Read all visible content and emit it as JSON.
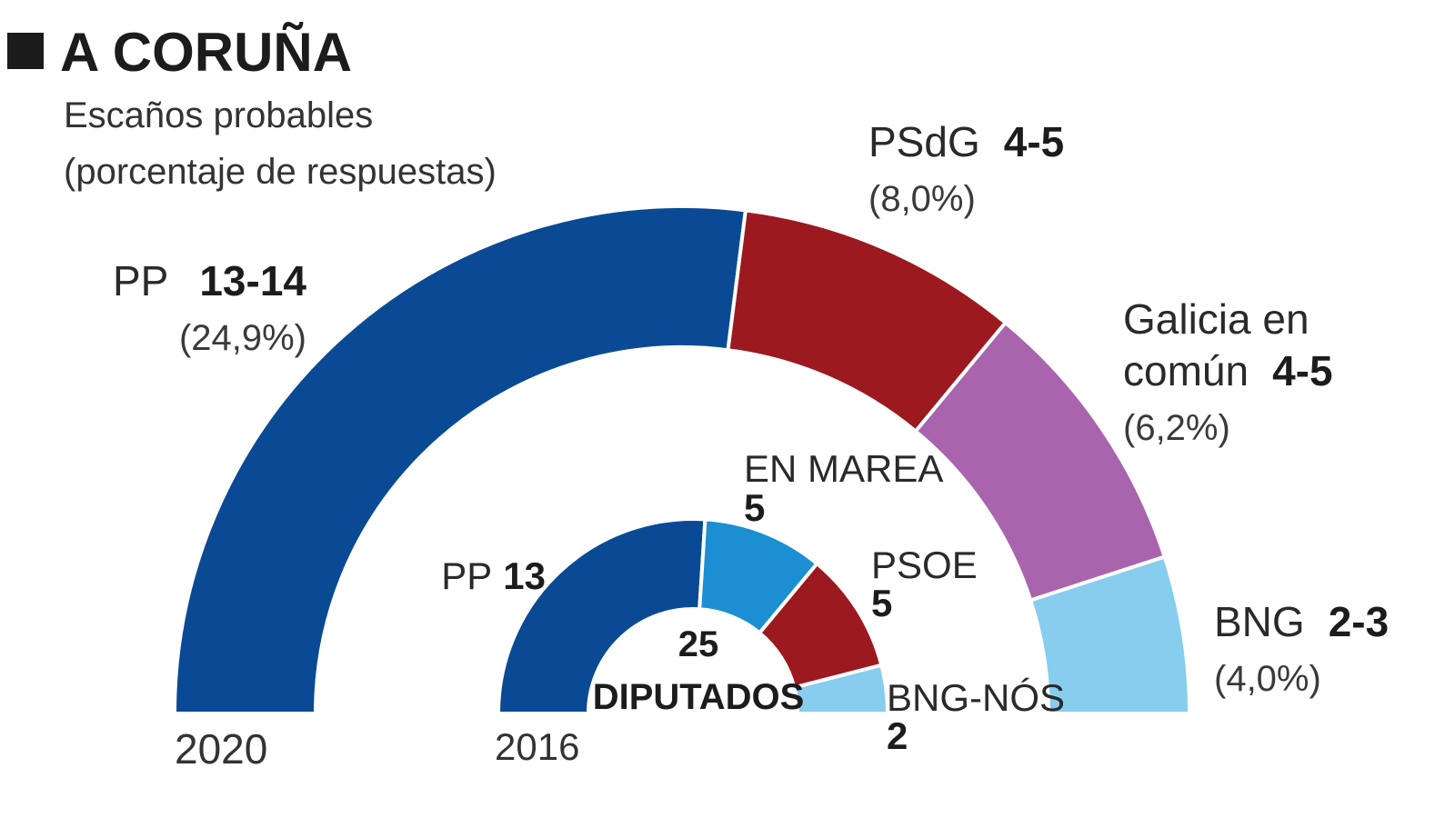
{
  "header": {
    "title": "A CORUÑA",
    "subtitle_line1": "Escaños probables",
    "subtitle_line2": "(porcentaje de respuestas)"
  },
  "chart_data": [
    {
      "type": "pie",
      "variant": "semicircle",
      "year_label": "2020",
      "total_seats": 25,
      "series": [
        {
          "name": "PP",
          "seats_label": "13-14",
          "seats": 13.5,
          "pct_label": "(24,9%)",
          "color": "#0a4a94"
        },
        {
          "name": "PSdG",
          "seats_label": "4-5",
          "seats": 4.5,
          "pct_label": "(8,0%)",
          "color": "#9c1a1f"
        },
        {
          "name_line1": "Galicia en",
          "name_line2": "común",
          "seats_label": "4-5",
          "seats": 4.5,
          "pct_label": "(6,2%)",
          "color": "#a864ad"
        },
        {
          "name": "BNG",
          "seats_label": "2-3",
          "seats": 2.5,
          "pct_label": "(4,0%)",
          "color": "#86cdee"
        }
      ]
    },
    {
      "type": "pie",
      "variant": "semicircle",
      "year_label": "2016",
      "total_seats": 25,
      "center_number": "25",
      "center_label": "DIPUTADOS",
      "series": [
        {
          "name": "PP",
          "seats_label": "13",
          "seats": 13,
          "color": "#0a4a94"
        },
        {
          "name": "EN MAREA",
          "seats_label": "5",
          "seats": 5,
          "color": "#1c8fd3"
        },
        {
          "name": "PSOE",
          "seats_label": "5",
          "seats": 5,
          "color": "#9c1a1f"
        },
        {
          "name": "BNG-NÓS",
          "seats_label": "2",
          "seats": 2,
          "color": "#86cdee"
        }
      ]
    }
  ]
}
